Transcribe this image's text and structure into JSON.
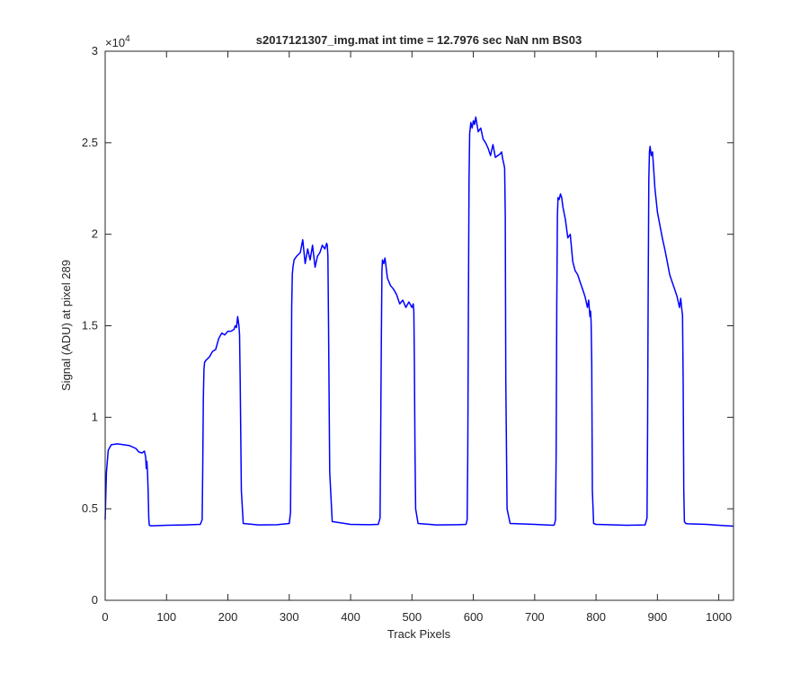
{
  "chart_data": {
    "type": "line",
    "title": "s2017121307_img.mat int time = 12.7976 sec  NaN nm BS03",
    "xlabel": "Track Pixels",
    "ylabel": "Signal (ADU) at pixel 289",
    "exponent_label": "×10",
    "exponent_power": "4",
    "xlim": [
      0,
      1024
    ],
    "ylim": [
      0,
      3
    ],
    "y_scale_factor": 10000,
    "xticks": [
      0,
      100,
      200,
      300,
      400,
      500,
      600,
      700,
      800,
      900,
      1000
    ],
    "xtick_labels": [
      "0",
      "100",
      "200",
      "300",
      "400",
      "500",
      "600",
      "700",
      "800",
      "900",
      "1000"
    ],
    "yticks": [
      0,
      0.5,
      1,
      1.5,
      2,
      2.5,
      3
    ],
    "ytick_labels": [
      "0",
      "0.5",
      "1",
      "1.5",
      "2",
      "2.5",
      "3"
    ],
    "grid": false,
    "line_color": "#0000ff",
    "axis_color": "#262626",
    "series": [
      {
        "x": [
          0,
          2,
          5,
          10,
          20,
          30,
          40,
          50,
          55,
          60,
          64,
          66,
          67,
          68,
          69,
          70,
          71,
          72,
          75,
          100,
          130,
          155,
          158,
          159,
          160,
          161,
          162,
          164,
          170,
          175,
          180,
          185,
          190,
          195,
          200,
          205,
          210,
          212,
          214,
          216,
          218,
          219,
          220,
          222,
          225,
          250,
          280,
          300,
          302,
          303,
          304,
          305,
          306,
          308,
          312,
          318,
          322,
          326,
          330,
          334,
          338,
          342,
          346,
          350,
          354,
          358,
          361,
          362,
          363,
          364,
          366,
          370,
          400,
          430,
          445,
          448,
          449,
          450,
          451,
          452,
          454,
          456,
          460,
          465,
          470,
          475,
          480,
          485,
          490,
          495,
          500,
          502,
          503,
          504,
          505,
          506,
          510,
          540,
          575,
          588,
          590,
          591,
          592,
          593,
          594,
          596,
          598,
          600,
          602,
          604,
          608,
          612,
          616,
          620,
          624,
          628,
          632,
          636,
          640,
          644,
          646,
          648,
          650,
          651,
          652,
          653,
          655,
          660,
          700,
          730,
          732,
          734,
          735,
          736,
          737,
          738,
          740,
          742,
          744,
          746,
          750,
          754,
          758,
          762,
          766,
          770,
          774,
          778,
          782,
          786,
          788,
          790,
          791,
          792,
          793,
          794,
          796,
          800,
          850,
          880,
          883,
          884,
          885,
          886,
          887,
          888,
          890,
          892,
          894,
          896,
          900,
          904,
          908,
          912,
          916,
          920,
          924,
          928,
          932,
          936,
          938,
          940,
          941,
          942,
          943,
          944,
          946,
          950,
          980,
          1000,
          1024
        ],
        "y": [
          0.44,
          0.7,
          0.82,
          0.85,
          0.855,
          0.85,
          0.845,
          0.83,
          0.81,
          0.805,
          0.815,
          0.78,
          0.72,
          0.76,
          0.7,
          0.6,
          0.45,
          0.41,
          0.407,
          0.41,
          0.412,
          0.415,
          0.44,
          0.7,
          1.1,
          1.26,
          1.3,
          1.31,
          1.33,
          1.36,
          1.37,
          1.43,
          1.46,
          1.45,
          1.47,
          1.47,
          1.48,
          1.5,
          1.49,
          1.55,
          1.5,
          1.45,
          1.2,
          0.6,
          0.42,
          0.412,
          0.413,
          0.42,
          0.48,
          0.9,
          1.6,
          1.78,
          1.82,
          1.86,
          1.88,
          1.9,
          1.97,
          1.84,
          1.92,
          1.86,
          1.94,
          1.82,
          1.88,
          1.9,
          1.94,
          1.92,
          1.95,
          1.94,
          1.88,
          1.5,
          0.7,
          0.43,
          0.415,
          0.413,
          0.415,
          0.45,
          0.9,
          1.4,
          1.8,
          1.86,
          1.84,
          1.87,
          1.76,
          1.72,
          1.7,
          1.67,
          1.62,
          1.64,
          1.6,
          1.63,
          1.6,
          1.62,
          1.58,
          1.3,
          0.8,
          0.5,
          0.42,
          0.412,
          0.413,
          0.415,
          0.44,
          0.8,
          1.6,
          2.3,
          2.55,
          2.61,
          2.58,
          2.62,
          2.6,
          2.64,
          2.56,
          2.58,
          2.52,
          2.5,
          2.47,
          2.43,
          2.49,
          2.42,
          2.43,
          2.44,
          2.45,
          2.41,
          2.38,
          2.36,
          2.1,
          1.2,
          0.5,
          0.42,
          0.415,
          0.41,
          0.413,
          0.44,
          0.8,
          1.6,
          2.1,
          2.2,
          2.19,
          2.22,
          2.2,
          2.15,
          2.08,
          1.98,
          2.0,
          1.85,
          1.8,
          1.78,
          1.74,
          1.7,
          1.66,
          1.6,
          1.64,
          1.55,
          1.58,
          1.52,
          1.3,
          0.6,
          0.42,
          0.415,
          0.41,
          0.412,
          0.45,
          0.9,
          1.7,
          2.3,
          2.45,
          2.48,
          2.43,
          2.45,
          2.35,
          2.25,
          2.12,
          2.05,
          1.98,
          1.92,
          1.85,
          1.78,
          1.74,
          1.7,
          1.66,
          1.6,
          1.65,
          1.58,
          1.56,
          1.2,
          0.6,
          0.43,
          0.42,
          0.418,
          0.415,
          0.41,
          0.405
        ]
      }
    ]
  }
}
